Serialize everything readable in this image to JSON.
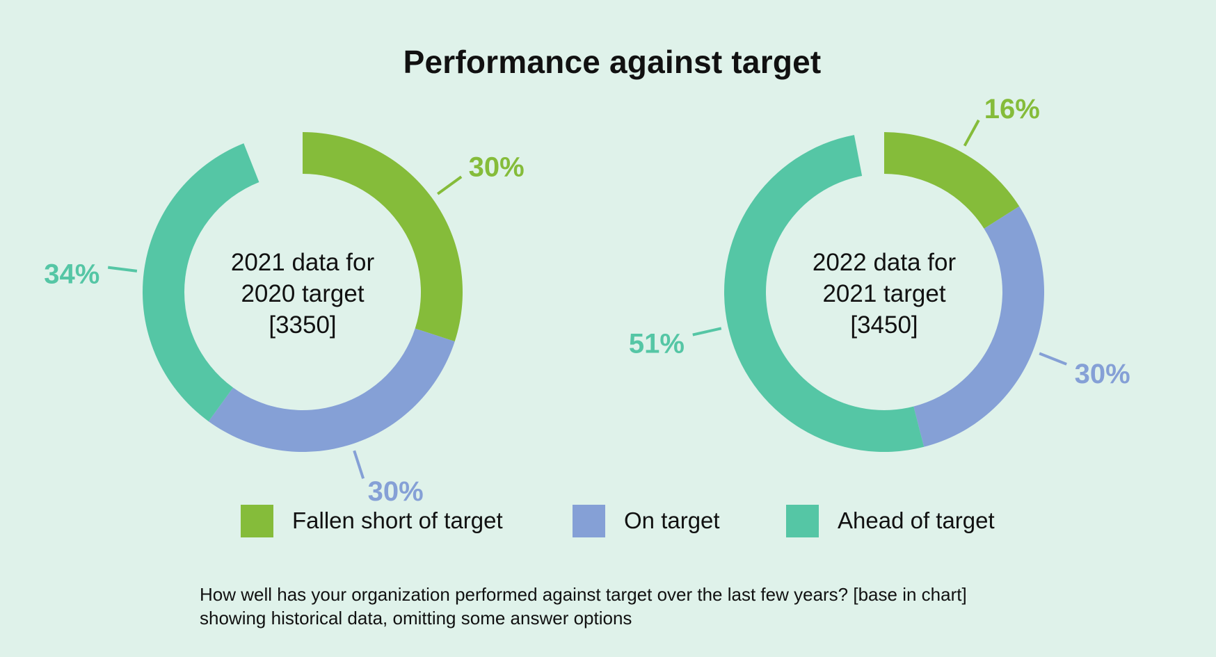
{
  "title": "Performance against target",
  "colors": {
    "background": "#dff2ea",
    "fallen_short": "#85bc3a",
    "on_target": "#85a0d6",
    "ahead": "#55c6a5"
  },
  "chart_data": [
    {
      "type": "pie",
      "variant": "donut",
      "center_text": [
        "2021 data for",
        "2020 target",
        "[3350]"
      ],
      "slices": [
        {
          "label": "Fallen short of target",
          "value": 30,
          "display": "30%"
        },
        {
          "label": "On target",
          "value": 30,
          "display": "30%"
        },
        {
          "label": "Ahead of target",
          "value": 34,
          "display": "34%"
        }
      ]
    },
    {
      "type": "pie",
      "variant": "donut",
      "center_text": [
        "2022 data for",
        "2021 target",
        "[3450]"
      ],
      "slices": [
        {
          "label": "Fallen short of target",
          "value": 16,
          "display": "16%"
        },
        {
          "label": "On target",
          "value": 30,
          "display": "30%"
        },
        {
          "label": "Ahead of target",
          "value": 51,
          "display": "51%"
        }
      ]
    }
  ],
  "legend": [
    {
      "label": "Fallen short of target",
      "color_key": "fallen_short"
    },
    {
      "label": "On target",
      "color_key": "on_target"
    },
    {
      "label": "Ahead of target",
      "color_key": "ahead"
    }
  ],
  "footnote": {
    "line1": "How well has your organization performed against target over the last few years? [base in chart]",
    "line2": "showing historical data, omitting some answer options"
  }
}
